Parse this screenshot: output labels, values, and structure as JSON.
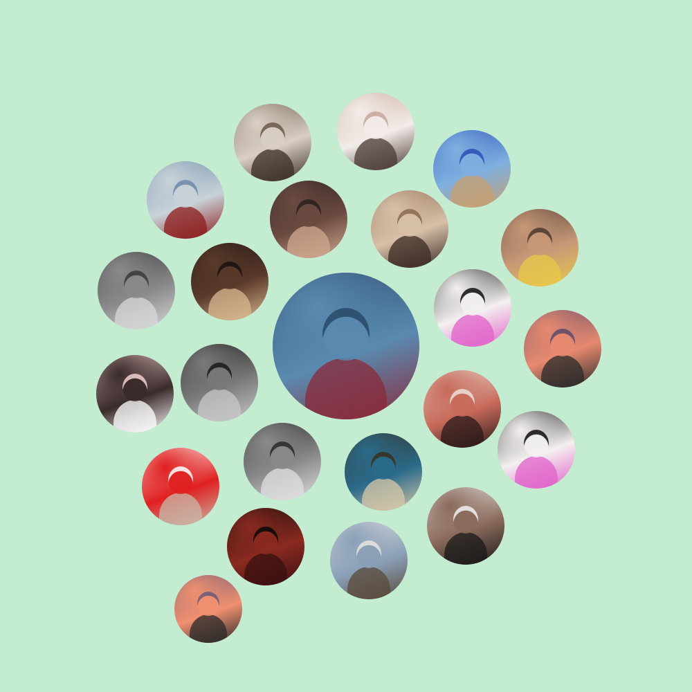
{
  "avatars": [
    {
      "name": "avatar-man-portrait-top",
      "colors": [
        "#6b5a4a",
        "#d9cfc3",
        "#3a2d24"
      ]
    },
    {
      "name": "avatar-three-girls-collage",
      "colors": [
        "#c9a69a",
        "#f2ece8",
        "#4a3a35"
      ]
    },
    {
      "name": "avatar-sea-beach",
      "colors": [
        "#2b4fb8",
        "#7fb0e0",
        "#c8a070"
      ]
    },
    {
      "name": "avatar-deadpool",
      "colors": [
        "#6b8aa8",
        "#c8d2d8",
        "#8c1c1c"
      ]
    },
    {
      "name": "avatar-couple-selfie",
      "colors": [
        "#2a2020",
        "#6a4a40",
        "#d0a890"
      ]
    },
    {
      "name": "avatar-smiling-girl-rocks",
      "colors": [
        "#8c6a50",
        "#d8c0a8",
        "#3a2a22"
      ]
    },
    {
      "name": "avatar-girl-crown-filter",
      "colors": [
        "#4a3a30",
        "#c89878",
        "#e8c84a"
      ]
    },
    {
      "name": "avatar-bw-mirror-selfie",
      "colors": [
        "#3a3a3a",
        "#8a8a8a",
        "#d8d8d8"
      ]
    },
    {
      "name": "avatar-blonde-sitting",
      "colors": [
        "#1a1212",
        "#5a3a2a",
        "#d8b890"
      ]
    },
    {
      "name": "avatar-main-girl-boat",
      "colors": [
        "#2a4a6a",
        "#5a8ab0",
        "#8a2a3a"
      ]
    },
    {
      "name": "avatar-cartoon-girl-stars",
      "colors": [
        "#101010",
        "#f4f0f0",
        "#e060c8"
      ]
    },
    {
      "name": "avatar-sunset-sky",
      "colors": [
        "#5a4a6a",
        "#e88a70",
        "#2a2a2a"
      ]
    },
    {
      "name": "avatar-pink-frame-girl",
      "colors": [
        "#f0d0d0",
        "#3a2a2a",
        "#ffffff"
      ]
    },
    {
      "name": "avatar-bw-beret-boy",
      "colors": [
        "#1a1a1a",
        "#7a7a7a",
        "#c8c8c8"
      ]
    },
    {
      "name": "avatar-boy-tilted-selfie",
      "colors": [
        "#e8e0d8",
        "#c86a5a",
        "#2a1a1a"
      ]
    },
    {
      "name": "avatar-cartoon-girl-stars-2",
      "colors": [
        "#101010",
        "#f4f0f0",
        "#e060c8"
      ]
    },
    {
      "name": "avatar-red-dress-mirror",
      "colors": [
        "#ffffff",
        "#e02020",
        "#c8b8a8"
      ]
    },
    {
      "name": "avatar-bw-hair-face",
      "colors": [
        "#2a2a2a",
        "#8a8a8a",
        "#e0e0e0"
      ]
    },
    {
      "name": "avatar-man-sitting-pool",
      "colors": [
        "#3a3020",
        "#2a6a8a",
        "#d8c8a8"
      ]
    },
    {
      "name": "avatar-man-hand-face",
      "colors": [
        "#f0f0f0",
        "#8a6a5a",
        "#1a1a1a"
      ]
    },
    {
      "name": "avatar-dark-red-blur",
      "colors": [
        "#0a0a0a",
        "#8a2a20",
        "#3a1010"
      ]
    },
    {
      "name": "avatar-girl-sunglasses-phone",
      "colors": [
        "#e8e4e0",
        "#8aa0b8",
        "#5a4a3a"
      ]
    },
    {
      "name": "avatar-sunset-small",
      "colors": [
        "#6a5a7a",
        "#f09070",
        "#2a2a2a"
      ]
    }
  ]
}
